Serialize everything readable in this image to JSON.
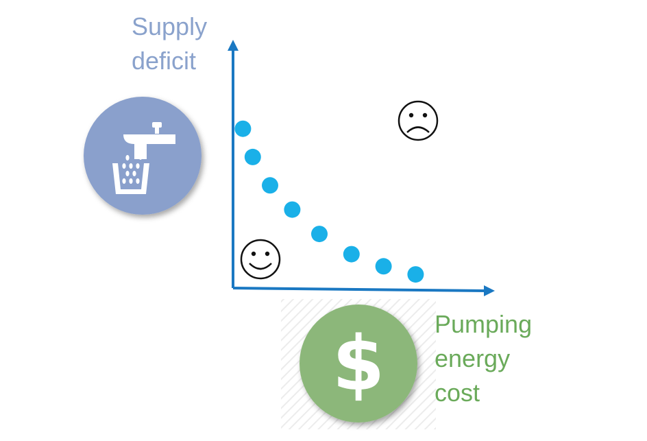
{
  "colors": {
    "axis": "#1a78c2",
    "points": "#1ab0e8",
    "ylabel": "#8aa2cc",
    "xlabel": "#6aaa5a",
    "tap_circle": "#8aa0cc",
    "dollar_circle": "#8cb77a"
  },
  "icons": {
    "y_axis_icon": "water-tap-icon",
    "x_axis_icon": "dollar-icon",
    "good_region": "smiley-face-icon",
    "bad_region": "frowning-face-icon"
  },
  "chart_data": {
    "type": "scatter",
    "title": "",
    "xlabel": "Pumping energy cost",
    "ylabel": "Supply deficit",
    "ylabel_lines": [
      "Supply",
      "deficit"
    ],
    "xlabel_lines": [
      "Pumping",
      "energy",
      "cost"
    ],
    "xlim": [
      0,
      10
    ],
    "ylim": [
      0,
      10
    ],
    "grid": false,
    "legend": "none",
    "tick_labels": false,
    "series": [
      {
        "x": [
          0.4,
          0.8,
          1.5,
          2.4,
          3.5,
          4.8,
          6.1,
          7.4
        ],
        "y": [
          7.3,
          5.9,
          4.5,
          3.3,
          2.1,
          1.1,
          0.5,
          0.1
        ]
      }
    ]
  }
}
